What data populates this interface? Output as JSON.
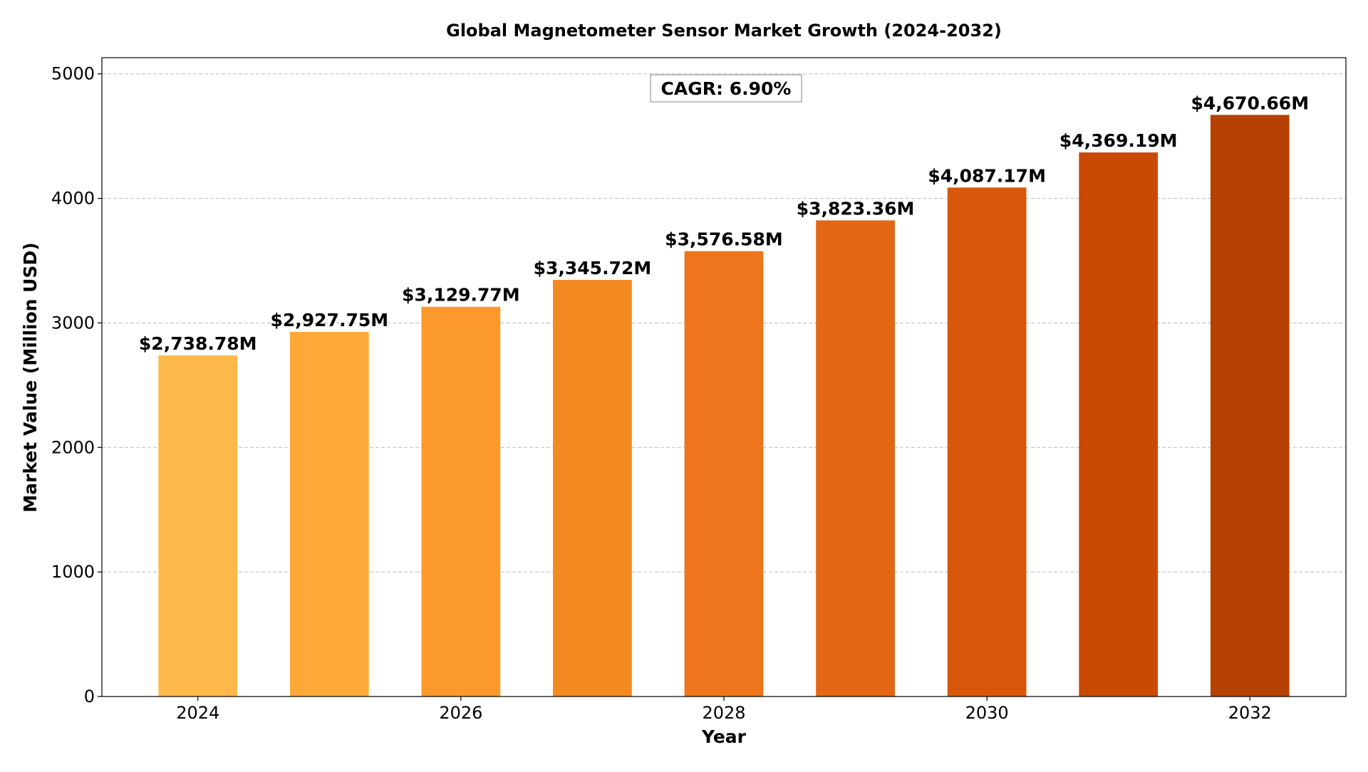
{
  "chart_data": {
    "type": "bar",
    "title": "Global Magnetometer Sensor Market Growth (2024-2032)",
    "xlabel": "Year",
    "ylabel": "Market Value (Million USD)",
    "categories": [
      2024,
      2025,
      2026,
      2027,
      2028,
      2029,
      2030,
      2031,
      2032
    ],
    "values": [
      2738.78,
      2927.75,
      3129.77,
      3345.72,
      3576.58,
      3823.36,
      4087.17,
      4369.19,
      4670.66
    ],
    "data_labels": [
      "$2,738.78M",
      "$2,927.75M",
      "$3,129.77M",
      "$3,345.72M",
      "$3,576.58M",
      "$3,823.36M",
      "$4,087.17M",
      "$4,369.19M",
      "$4,670.66M"
    ],
    "bar_colors": [
      "#FDB94A",
      "#FCA93A",
      "#FB9A2A",
      "#F48A22",
      "#ED761C",
      "#E36714",
      "#D8570A",
      "#C84A03",
      "#B54104"
    ],
    "x_ticks": [
      2024,
      2026,
      2028,
      2030,
      2032
    ],
    "x_tick_labels": [
      "2024",
      "2026",
      "2028",
      "2030",
      "2032"
    ],
    "y_ticks": [
      0,
      1000,
      2000,
      3000,
      4000,
      5000
    ],
    "y_tick_labels": [
      "0",
      "1000",
      "2000",
      "3000",
      "4000",
      "5000"
    ],
    "xlim": [
      2023.27,
      2032.73
    ],
    "ylim": [
      0,
      5130
    ],
    "grid": "y dashed",
    "annotation": "CAGR: 6.90%"
  }
}
